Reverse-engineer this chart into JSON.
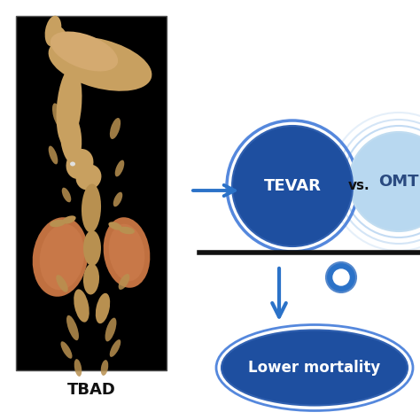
{
  "background_color": "#ffffff",
  "image_label": "TBAD",
  "tevar_label": "TEVAR",
  "omt_label": "OMT",
  "vs_label": "vs.",
  "outcome_label": "Lower mortality",
  "tevar_color": "#1e4fa0",
  "tevar_edge_color": "#4a7fd4",
  "omt_fill_color": "#b8d8f0",
  "omt_ring_colors": [
    "#daeeff",
    "#c8e4f8",
    "#b0d4ee"
  ],
  "outcome_color": "#1e4fa0",
  "outcome_edge_color": "#4a7fd4",
  "arrow_color": "#2b72c8",
  "pivot_color": "#2b72c8",
  "balance_line_color": "#111111",
  "text_color_white": "#ffffff",
  "text_color_dark": "#111111",
  "ct_bg": "#000000",
  "aorta_color": "#c8a060",
  "vessel_color": "#b89050",
  "kidney_color": "#c07040"
}
